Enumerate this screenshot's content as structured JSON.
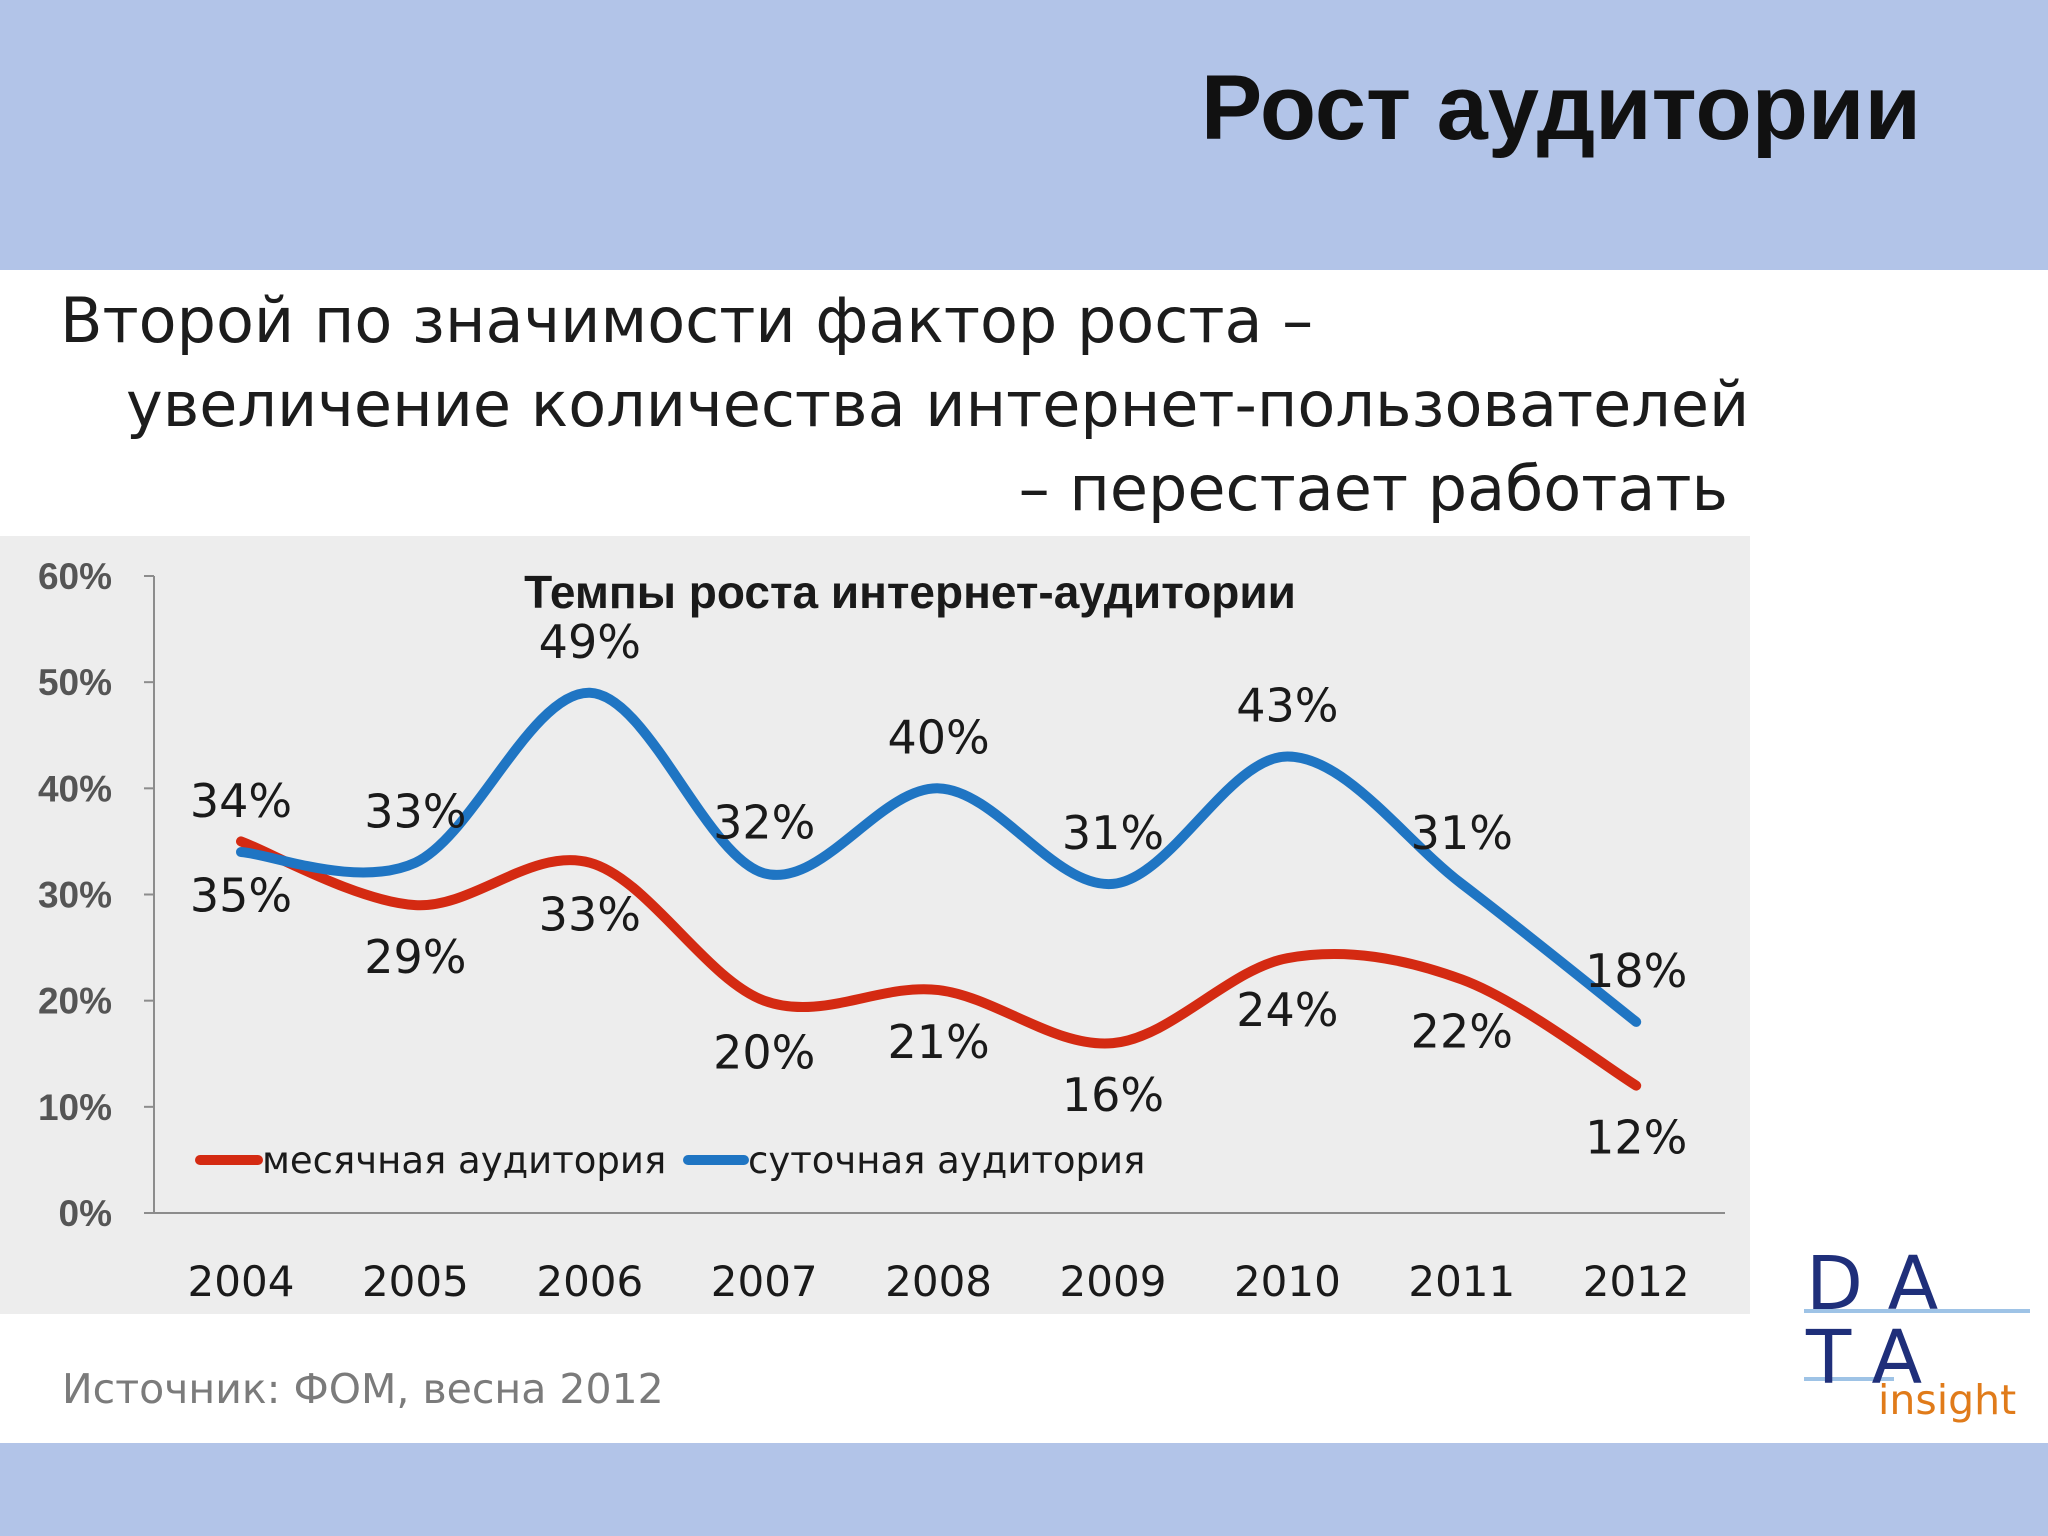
{
  "slide": {
    "title": "Рост аудитории",
    "subtitle_lines": [
      "Второй по значимости фактор роста –",
      "увеличение количества интернет-пользователей",
      "– перестает работать"
    ],
    "source": "Источник: ФОМ, весна 2012",
    "logo": {
      "line1": "DA",
      "line2": "TA",
      "line3": "insight"
    }
  },
  "colors": {
    "header_band": "#b2c4e8",
    "chart_background": "#ededed",
    "monthly_series": "#d42a12",
    "daily_series": "#1f75c3",
    "logo_text": "#1f2f7a",
    "logo_accent": "#e07b1a"
  },
  "chart_data": {
    "type": "line",
    "title": "Темпы роста интернет-аудитории",
    "xlabel": "",
    "ylabel": "",
    "categories": [
      "2004",
      "2005",
      "2006",
      "2007",
      "2008",
      "2009",
      "2010",
      "2011",
      "2012"
    ],
    "y_ticks": [
      "0%",
      "10%",
      "20%",
      "30%",
      "40%",
      "50%",
      "60%"
    ],
    "ylim": [
      0,
      60
    ],
    "grid": false,
    "legend_position": "bottom-left",
    "series": [
      {
        "name": "месячная аудитория",
        "color": "#d42a12",
        "values": [
          35,
          29,
          33,
          20,
          21,
          16,
          24,
          22,
          12
        ],
        "labels": [
          "35%",
          "29%",
          "33%",
          "20%",
          "21%",
          "16%",
          "24%",
          "22%",
          "12%"
        ]
      },
      {
        "name": "суточная аудитория",
        "color": "#1f75c3",
        "values": [
          34,
          33,
          49,
          32,
          40,
          31,
          43,
          31,
          18
        ],
        "labels": [
          "34%",
          "33%",
          "49%",
          "32%",
          "40%",
          "31%",
          "43%",
          "31%",
          "18%"
        ]
      }
    ]
  }
}
